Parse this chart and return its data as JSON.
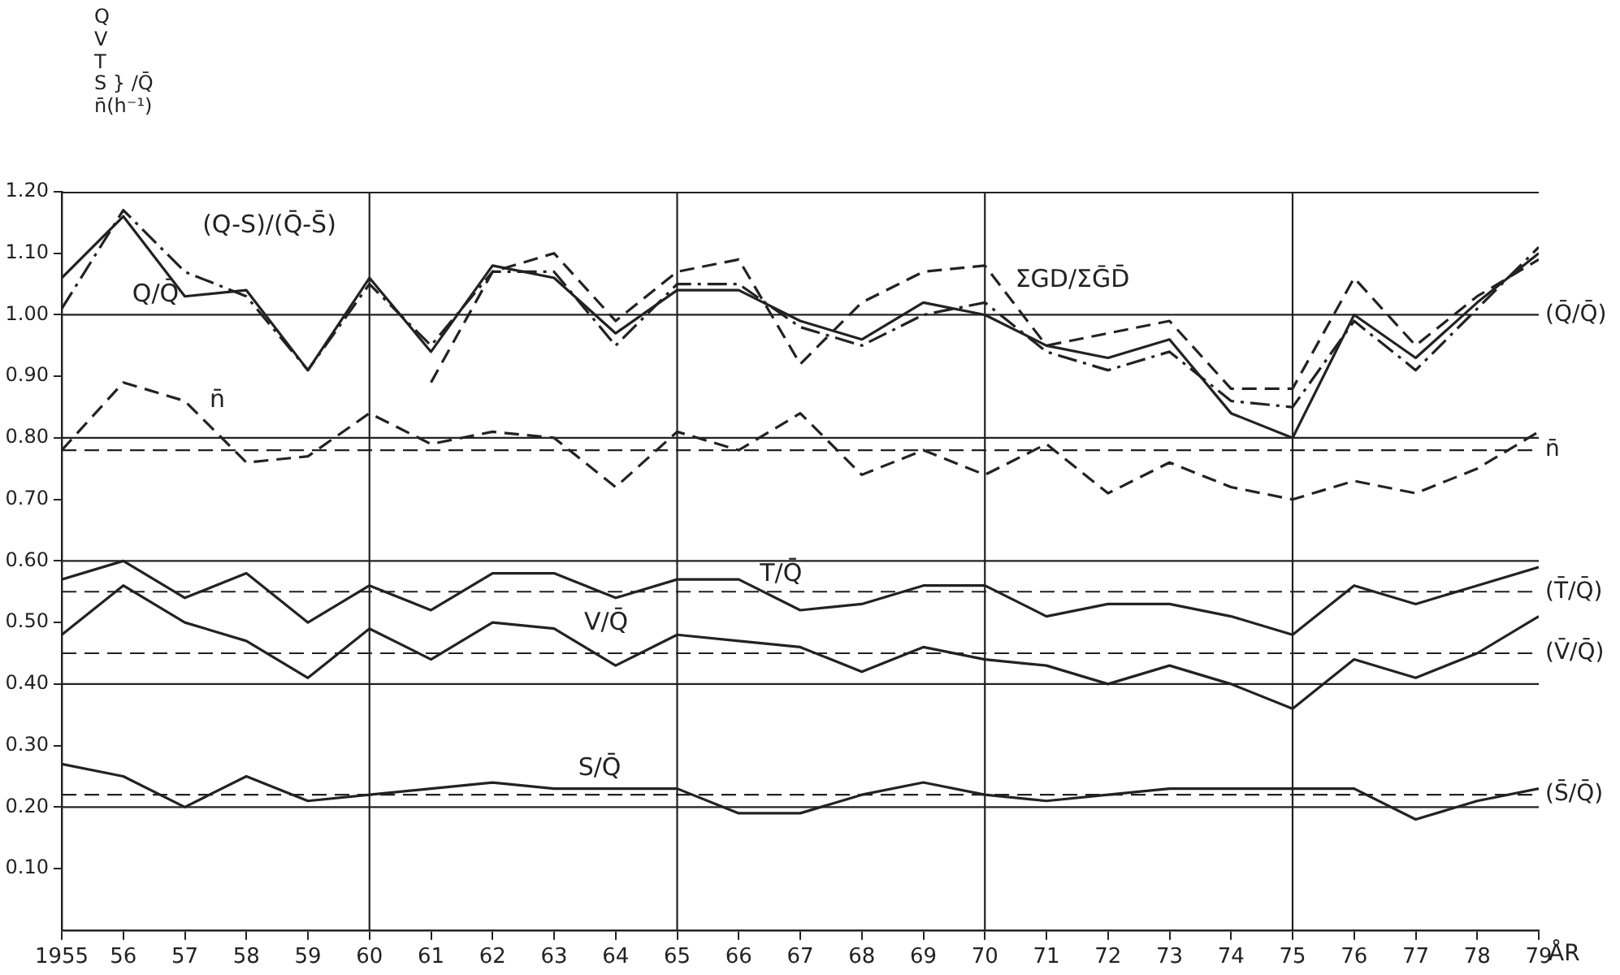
{
  "chart_data": {
    "type": "line",
    "ylabel": "Q\nV\nT\nS } /Q̄\nn̄(h⁻¹)",
    "xlabel": "ÅR",
    "x": [
      1955,
      1956,
      1957,
      1958,
      1959,
      1960,
      1961,
      1962,
      1963,
      1964,
      1965,
      1966,
      1967,
      1968,
      1969,
      1970,
      1971,
      1972,
      1973,
      1974,
      1975,
      1976,
      1977,
      1978,
      1979
    ],
    "series": [
      {
        "name": "Q/Q̄",
        "color": "#222222",
        "line_style": "solid",
        "values": [
          1.06,
          1.16,
          1.03,
          1.04,
          0.91,
          1.06,
          0.94,
          1.08,
          1.06,
          0.97,
          1.04,
          1.04,
          0.99,
          0.96,
          1.02,
          1.0,
          0.95,
          0.93,
          0.96,
          0.84,
          0.8,
          1.0,
          0.93,
          1.02,
          1.1
        ]
      },
      {
        "name": "(Q-S)/(Q̄-S̄)",
        "color": "#222222",
        "line_style": "dashdot",
        "values": [
          1.01,
          1.17,
          1.07,
          1.03,
          0.91,
          1.05,
          0.95,
          1.07,
          1.07,
          0.95,
          1.05,
          1.05,
          0.98,
          0.95,
          1.0,
          1.02,
          0.94,
          0.91,
          0.94,
          0.86,
          0.85,
          0.99,
          0.91,
          1.01,
          1.11
        ]
      },
      {
        "name": "ΣGD/ΣḠD̄",
        "color": "#222222",
        "line_style": "dashed",
        "values": [
          null,
          null,
          null,
          null,
          null,
          null,
          0.89,
          1.07,
          1.1,
          0.99,
          1.07,
          1.09,
          0.92,
          1.02,
          1.07,
          1.08,
          0.95,
          0.97,
          0.99,
          0.88,
          0.88,
          1.06,
          0.95,
          1.03,
          1.09
        ]
      },
      {
        "name": "n̄",
        "color": "#222222",
        "line_style": "dashed",
        "values": [
          0.78,
          0.89,
          0.86,
          0.76,
          0.77,
          0.84,
          0.79,
          0.81,
          0.8,
          0.72,
          0.81,
          0.78,
          0.84,
          0.74,
          0.78,
          0.74,
          0.79,
          0.71,
          0.76,
          0.72,
          0.7,
          0.73,
          0.71,
          0.75,
          0.81
        ]
      },
      {
        "name": "T/Q̄",
        "color": "#222222",
        "line_style": "solid",
        "values": [
          0.57,
          0.6,
          0.54,
          0.58,
          0.5,
          0.56,
          0.52,
          0.58,
          0.58,
          0.54,
          0.57,
          0.57,
          0.52,
          0.53,
          0.56,
          0.56,
          0.51,
          0.53,
          0.53,
          0.51,
          0.48,
          0.56,
          0.53,
          0.56,
          0.59
        ]
      },
      {
        "name": "V/Q̄",
        "color": "#222222",
        "line_style": "solid",
        "values": [
          0.48,
          0.56,
          0.5,
          0.47,
          0.41,
          0.49,
          0.44,
          0.5,
          0.49,
          0.43,
          0.48,
          0.47,
          0.46,
          0.42,
          0.46,
          0.44,
          0.43,
          0.4,
          0.43,
          0.4,
          0.36,
          0.44,
          0.41,
          0.45,
          0.51
        ]
      },
      {
        "name": "S/Q̄",
        "color": "#222222",
        "line_style": "solid",
        "values": [
          0.27,
          0.25,
          0.2,
          0.25,
          0.21,
          0.22,
          0.23,
          0.24,
          0.23,
          0.23,
          0.23,
          0.19,
          0.19,
          0.22,
          0.24,
          0.22,
          0.21,
          0.22,
          0.23,
          0.23,
          0.23,
          0.23,
          0.18,
          0.21,
          0.23
        ]
      }
    ],
    "xlim": [
      1955,
      1979
    ],
    "xticks": [
      {
        "value": 1955,
        "label": "1955"
      },
      {
        "value": 1956,
        "label": "56"
      },
      {
        "value": 1957,
        "label": "57"
      },
      {
        "value": 1958,
        "label": "58"
      },
      {
        "value": 1959,
        "label": "59"
      },
      {
        "value": 1960,
        "label": "60"
      },
      {
        "value": 1961,
        "label": "61"
      },
      {
        "value": 1962,
        "label": "62"
      },
      {
        "value": 1963,
        "label": "63"
      },
      {
        "value": 1964,
        "label": "64"
      },
      {
        "value": 1965,
        "label": "65"
      },
      {
        "value": 1966,
        "label": "66"
      },
      {
        "value": 1967,
        "label": "67"
      },
      {
        "value": 1968,
        "label": "68"
      },
      {
        "value": 1969,
        "label": "69"
      },
      {
        "value": 1970,
        "label": "70"
      },
      {
        "value": 1971,
        "label": "71"
      },
      {
        "value": 1972,
        "label": "72"
      },
      {
        "value": 1973,
        "label": "73"
      },
      {
        "value": 1974,
        "label": "74"
      },
      {
        "value": 1975,
        "label": "75"
      },
      {
        "value": 1976,
        "label": "76"
      },
      {
        "value": 1977,
        "label": "77"
      },
      {
        "value": 1978,
        "label": "78"
      },
      {
        "value": 1979,
        "label": "79"
      }
    ],
    "ylim": [
      0,
      1.2
    ],
    "yticks": [
      {
        "value": 0.1,
        "label": "0.10"
      },
      {
        "value": 0.2,
        "label": "0.20"
      },
      {
        "value": 0.3,
        "label": "0.30"
      },
      {
        "value": 0.4,
        "label": "0.40"
      },
      {
        "value": 0.5,
        "label": "0.50"
      },
      {
        "value": 0.6,
        "label": "0.60"
      },
      {
        "value": 0.7,
        "label": "0.70"
      },
      {
        "value": 0.8,
        "label": "0.80"
      },
      {
        "value": 0.9,
        "label": "0.90"
      },
      {
        "value": 1.0,
        "label": "1.00"
      },
      {
        "value": 1.1,
        "label": "1.10"
      },
      {
        "value": 1.2,
        "label": "1.20"
      }
    ],
    "ref_lines": [
      {
        "axis": "y",
        "value": 1.0,
        "label": "(Q̄/Q̄)"
      },
      {
        "axis": "y",
        "value": 0.8,
        "label": null
      },
      {
        "axis": "y",
        "value": 0.78,
        "label": "n̄",
        "line_style": "dashed"
      },
      {
        "axis": "y",
        "value": 0.6,
        "label": null
      },
      {
        "axis": "y",
        "value": 0.55,
        "label": "(T̄/Q̄)",
        "line_style": "dashed"
      },
      {
        "axis": "y",
        "value": 0.45,
        "label": "(V̄/Q̄)",
        "line_style": "dashed"
      },
      {
        "axis": "y",
        "value": 0.4,
        "label": null
      },
      {
        "axis": "y",
        "value": 0.22,
        "label": "(S̄/Q̄)",
        "line_style": "dashed"
      },
      {
        "axis": "y",
        "value": 0.2,
        "label": null
      },
      {
        "axis": "x",
        "value": 1960,
        "label": null
      },
      {
        "axis": "x",
        "value": 1965,
        "label": null
      },
      {
        "axis": "x",
        "value": 1970,
        "label": null
      },
      {
        "axis": "x",
        "value": 1975,
        "label": null
      }
    ],
    "legend": false
  }
}
